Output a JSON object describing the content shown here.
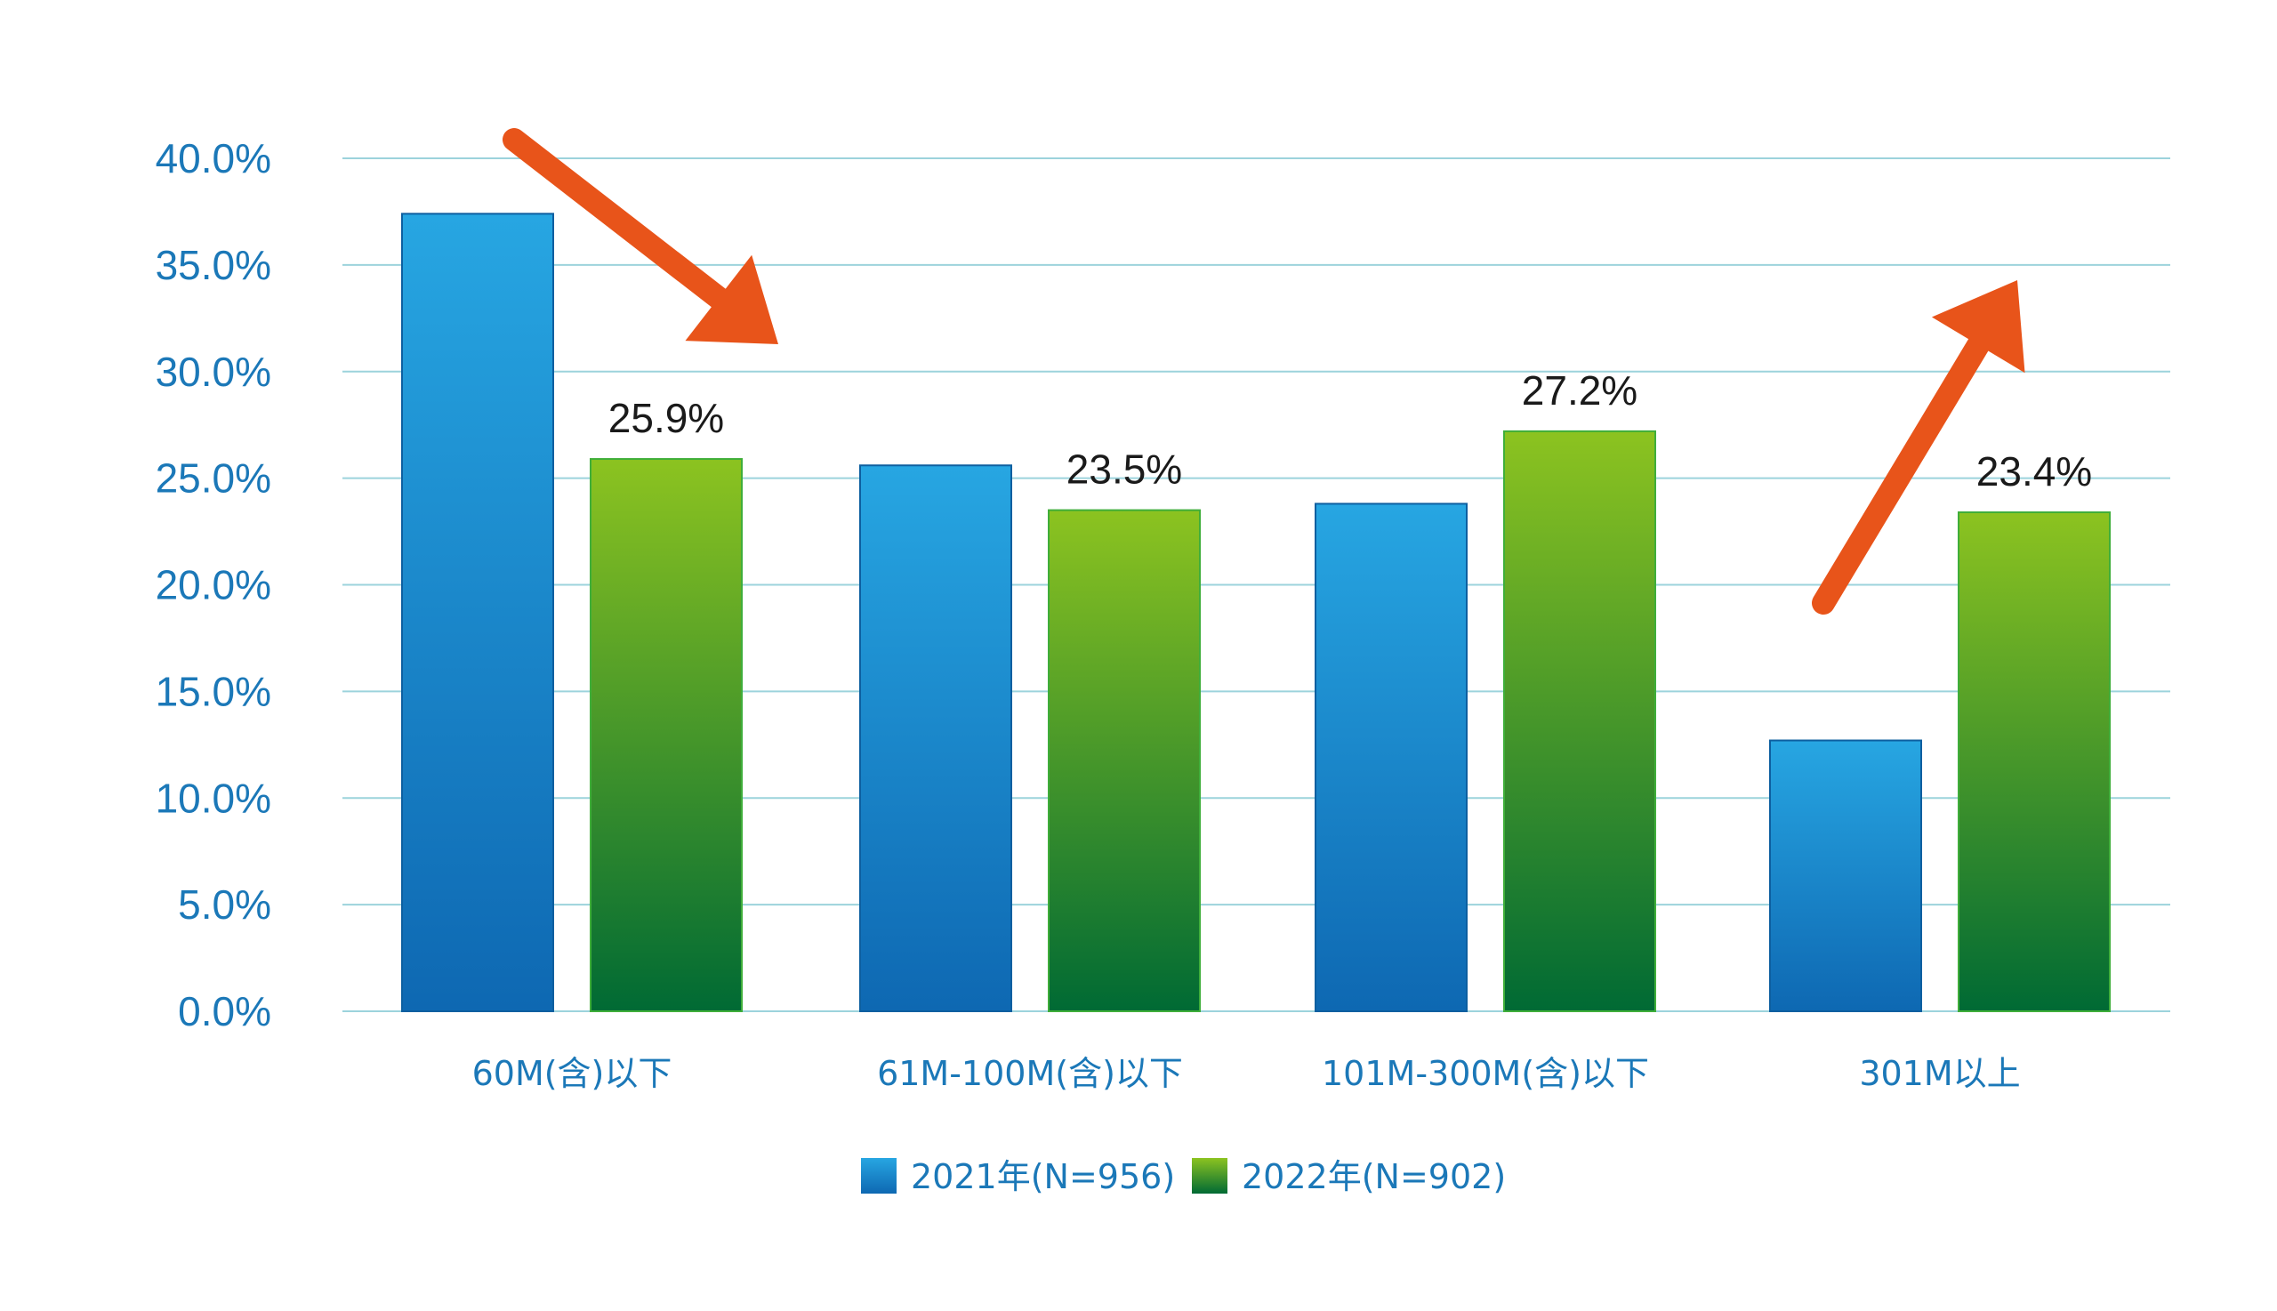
{
  "chart_data": {
    "type": "bar",
    "categories": [
      "60M(含)以下",
      "61M-100M(含)以下",
      "101M-300M(含)以下",
      "301M以上"
    ],
    "series": [
      {
        "name": "2021年(N=956)",
        "values": [
          37.4,
          25.6,
          23.8,
          12.7
        ],
        "value_labels": [
          "",
          "",
          "",
          ""
        ],
        "color": "#1b78c2"
      },
      {
        "name": "2022年(N=902)",
        "values": [
          25.9,
          23.5,
          27.2,
          23.4
        ],
        "value_labels": [
          "25.9%",
          "23.5%",
          "27.2%",
          "23.4%"
        ],
        "color": "#4aa32a"
      }
    ],
    "ylim": [
      0,
      40
    ],
    "yticks": [
      "0.0%",
      "5.0%",
      "10.0%",
      "15.0%",
      "20.0%",
      "25.0%",
      "30.0%",
      "35.0%",
      "40.0%"
    ],
    "grid": true,
    "legend_position": "bottom",
    "arrows": [
      {
        "direction": "down",
        "color": "#e8541a"
      },
      {
        "direction": "up",
        "color": "#e8541a"
      }
    ]
  }
}
